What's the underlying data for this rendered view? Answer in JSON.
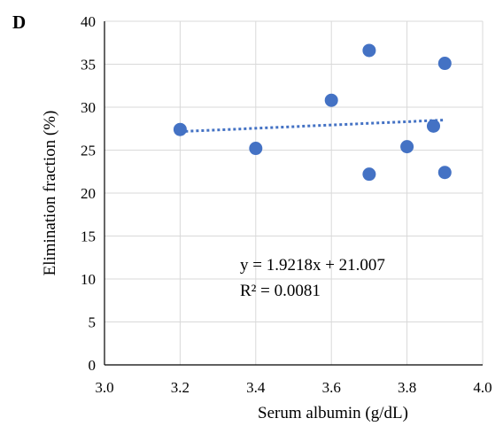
{
  "chart_data": {
    "type": "scatter",
    "panel_label": "D",
    "title": "",
    "xlabel": "Serum albumin (g/dL)",
    "ylabel": "Elimination fraction (%)",
    "xlim": [
      3.0,
      4.0
    ],
    "ylim": [
      0,
      40
    ],
    "x_ticks": [
      "3.0",
      "3.2",
      "3.4",
      "3.6",
      "3.8",
      "4.0"
    ],
    "y_ticks": [
      "0",
      "5",
      "10",
      "15",
      "20",
      "25",
      "30",
      "35",
      "40"
    ],
    "grid": true,
    "series": [
      {
        "points": [
          {
            "x": 3.2,
            "y": 27.4
          },
          {
            "x": 3.4,
            "y": 25.2
          },
          {
            "x": 3.6,
            "y": 30.8
          },
          {
            "x": 3.7,
            "y": 36.6
          },
          {
            "x": 3.7,
            "y": 22.2
          },
          {
            "x": 3.8,
            "y": 25.4
          },
          {
            "x": 3.87,
            "y": 27.8
          },
          {
            "x": 3.9,
            "y": 35.1
          },
          {
            "x": 3.9,
            "y": 22.4
          }
        ],
        "color": "#4472C4"
      }
    ],
    "trendline": {
      "type": "linear",
      "slope": 1.9218,
      "intercept": 21.007,
      "x_range": [
        3.2,
        3.9
      ],
      "style": "dotted",
      "color": "#4472C4",
      "equation_label": "y = 1.9218x + 21.007",
      "r2_label": "R² = 0.0081"
    }
  }
}
